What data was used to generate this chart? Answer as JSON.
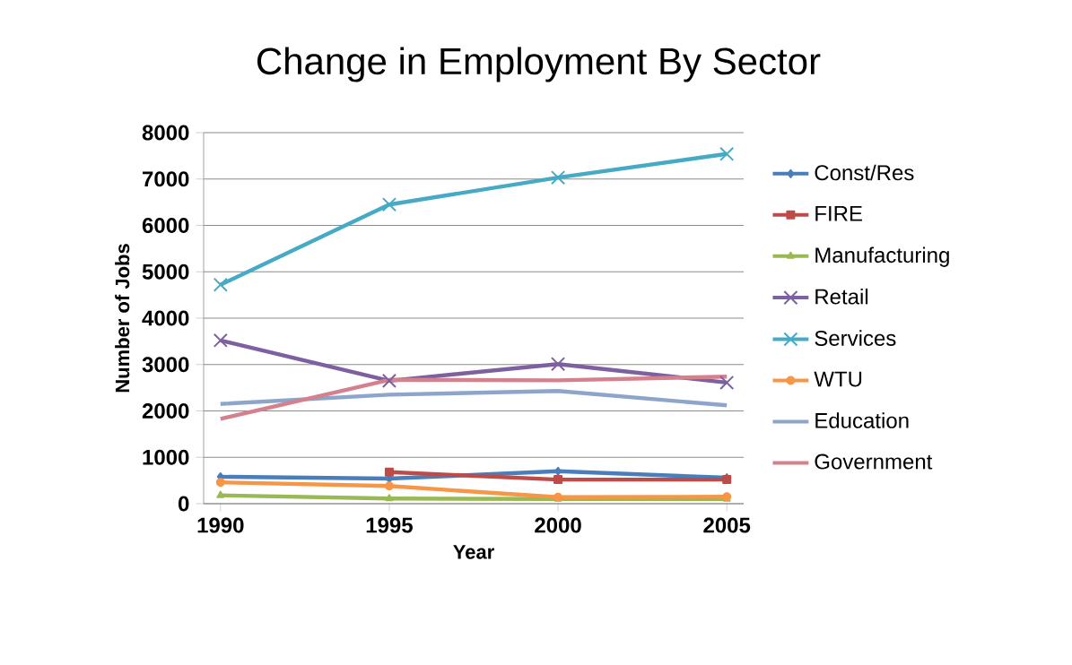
{
  "chart_data": {
    "type": "line",
    "title": "Change in Employment By Sector",
    "xlabel": "Year",
    "ylabel": "Number of Jobs",
    "categories": [
      "1990",
      "1995",
      "2000",
      "2005"
    ],
    "series": [
      {
        "name": "Const/Res",
        "color": "#4a7ebb",
        "marker": "diamond",
        "values": [
          580,
          540,
          700,
          560
        ]
      },
      {
        "name": "FIRE",
        "color": "#be4b48",
        "marker": "square",
        "values": [
          null,
          680,
          520,
          520
        ]
      },
      {
        "name": "Manufacturing",
        "color": "#98b954",
        "marker": "triangle",
        "values": [
          180,
          110,
          100,
          100
        ]
      },
      {
        "name": "Retail",
        "color": "#7d60a0",
        "marker": "cross",
        "values": [
          3520,
          2650,
          3010,
          2610
        ]
      },
      {
        "name": "Services",
        "color": "#46aac5",
        "marker": "cross",
        "values": [
          4720,
          6450,
          7030,
          7540
        ]
      },
      {
        "name": "WTU",
        "color": "#f79646",
        "marker": "circle",
        "values": [
          460,
          380,
          140,
          150
        ]
      },
      {
        "name": "Education",
        "color": "#8ea5cb",
        "marker": "none",
        "values": [
          2150,
          2350,
          2430,
          2120
        ]
      },
      {
        "name": "Government",
        "color": "#d5808d",
        "marker": "none",
        "values": [
          1830,
          2670,
          2660,
          2740
        ]
      }
    ],
    "ylim": [
      0,
      8000
    ],
    "yticks": [
      0,
      1000,
      2000,
      3000,
      4000,
      5000,
      6000,
      7000,
      8000
    ],
    "grid": "y",
    "legend": "right"
  }
}
